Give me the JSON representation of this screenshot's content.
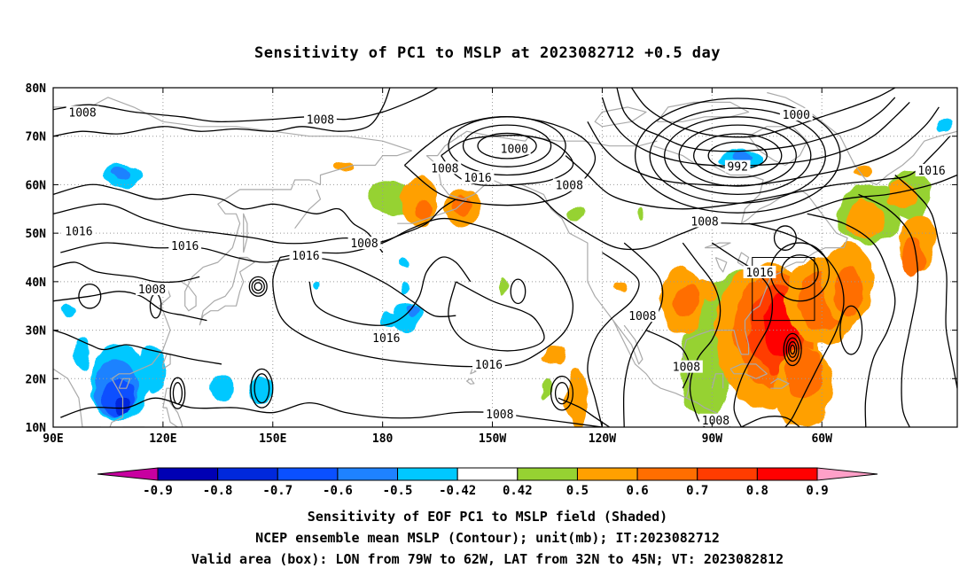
{
  "title": "Sensitivity of PC1 to MSLP at 2023082712 +0.5 day",
  "map": {
    "lat_labels": [
      "80N",
      "70N",
      "60N",
      "50N",
      "40N",
      "30N",
      "20N",
      "10N"
    ],
    "lon_labels": [
      "90E",
      "120E",
      "150E",
      "180",
      "150W",
      "120W",
      "90W",
      "60W"
    ],
    "lon_extent_deg": [
      90,
      337
    ],
    "lat_extent_deg": [
      10,
      80
    ],
    "grid_style": "dotted",
    "contour_color": "#000000",
    "coast_color": "#aaaaaa",
    "contour_labels": [
      {
        "text": "1008",
        "lon": 98,
        "lat": 75
      },
      {
        "text": "1008",
        "lon": 163,
        "lat": 73.5
      },
      {
        "text": "1000",
        "lon": 216,
        "lat": 67.5
      },
      {
        "text": "1008",
        "lon": 197,
        "lat": 63.5
      },
      {
        "text": "1016",
        "lon": 206,
        "lat": 61.5
      },
      {
        "text": "1008",
        "lon": 231,
        "lat": 60
      },
      {
        "text": "1000",
        "lon": 293,
        "lat": 74.5
      },
      {
        "text": "992",
        "lon": 277,
        "lat": 63.8
      },
      {
        "text": "1016",
        "lon": 330,
        "lat": 63
      },
      {
        "text": "1008",
        "lon": 268,
        "lat": 52.5
      },
      {
        "text": "1016",
        "lon": 97,
        "lat": 50.5
      },
      {
        "text": "1016",
        "lon": 126,
        "lat": 47.5
      },
      {
        "text": "1008",
        "lon": 175,
        "lat": 48
      },
      {
        "text": "1016",
        "lon": 159,
        "lat": 45.5
      },
      {
        "text": "1008",
        "lon": 117,
        "lat": 38.5
      },
      {
        "text": "1016",
        "lon": 283,
        "lat": 42
      },
      {
        "text": "1008",
        "lon": 251,
        "lat": 33
      },
      {
        "text": "1016",
        "lon": 181,
        "lat": 28.5
      },
      {
        "text": "1016",
        "lon": 209,
        "lat": 23
      },
      {
        "text": "1008",
        "lon": 263,
        "lat": 22.5
      },
      {
        "text": "1008",
        "lon": 212,
        "lat": 12.7
      },
      {
        "text": "1008",
        "lon": 271,
        "lat": 11.5
      }
    ],
    "valid_box": {
      "lon_min": 281,
      "lon_max": 298,
      "lat_min": 32,
      "lat_max": 45
    }
  },
  "colorbar": {
    "labels": [
      "-0.9",
      "-0.8",
      "-0.7",
      "-0.6",
      "-0.5",
      "-0.42",
      "0.42",
      "0.5",
      "0.6",
      "0.7",
      "0.8",
      "0.9"
    ],
    "colors": [
      "#0000b4",
      "#0028dc",
      "#0a50ff",
      "#1e82ff",
      "#00c8ff",
      "#ffffff",
      "#96d232",
      "#ffa000",
      "#ff6e00",
      "#ff3c00",
      "#ff0000"
    ],
    "below_color": "#c800a0",
    "above_color": "#ffa0c8"
  },
  "shading": {
    "positive": [
      {
        "lon": 183,
        "lat": 57,
        "r": [
          7,
          3.5
        ],
        "level": 0
      },
      {
        "lon": 190,
        "lat": 56.5,
        "r": [
          5,
          5
        ],
        "level": 1
      },
      {
        "lon": 191,
        "lat": 55,
        "r": [
          2.5,
          2
        ],
        "level": 2
      },
      {
        "lon": 202,
        "lat": 55,
        "r": [
          5,
          4
        ],
        "level": 1
      },
      {
        "lon": 202,
        "lat": 56,
        "r": [
          2.5,
          2
        ],
        "level": 2
      },
      {
        "lon": 169,
        "lat": 63.5,
        "r": [
          3,
          1
        ],
        "level": 1
      },
      {
        "lon": 233,
        "lat": 54,
        "r": [
          3,
          1.5
        ],
        "level": 0
      },
      {
        "lon": 250,
        "lat": 54,
        "r": [
          1,
          1
        ],
        "level": 0
      },
      {
        "lon": 213,
        "lat": 39,
        "r": [
          1,
          2
        ],
        "level": 0
      },
      {
        "lon": 245,
        "lat": 39,
        "r": [
          2,
          1.2
        ],
        "level": 1
      },
      {
        "lon": 227,
        "lat": 25,
        "r": [
          3,
          2
        ],
        "level": 1
      },
      {
        "lon": 225,
        "lat": 18,
        "r": [
          1.3,
          1.8
        ],
        "level": 0
      },
      {
        "lon": 233,
        "lat": 16,
        "r": [
          3,
          6
        ],
        "level": 1
      },
      {
        "lon": 268,
        "lat": 22,
        "r": [
          7,
          10
        ],
        "level": 0
      },
      {
        "lon": 262,
        "lat": 36,
        "r": [
          6,
          7
        ],
        "level": 1
      },
      {
        "lon": 263,
        "lat": 36,
        "r": [
          3,
          3
        ],
        "level": 2
      },
      {
        "lon": 278,
        "lat": 30,
        "r": [
          12,
          12
        ],
        "level": 0
      },
      {
        "lon": 285,
        "lat": 29,
        "r": [
          14,
          15
        ],
        "level": 1
      },
      {
        "lon": 287,
        "lat": 30,
        "r": [
          11,
          12
        ],
        "level": 2
      },
      {
        "lon": 288,
        "lat": 30,
        "r": [
          8,
          9
        ],
        "level": 3
      },
      {
        "lon": 289,
        "lat": 31,
        "r": [
          5,
          6
        ],
        "level": 4
      },
      {
        "lon": 300,
        "lat": 36,
        "r": [
          10,
          9
        ],
        "level": 1
      },
      {
        "lon": 300,
        "lat": 36,
        "r": [
          7,
          6
        ],
        "level": 2
      },
      {
        "lon": 295,
        "lat": 18,
        "r": [
          8,
          8
        ],
        "level": 1
      },
      {
        "lon": 295,
        "lat": 21,
        "r": [
          5,
          5
        ],
        "level": 2
      },
      {
        "lon": 307,
        "lat": 40,
        "r": [
          7,
          8
        ],
        "level": 1
      },
      {
        "lon": 307,
        "lat": 38,
        "r": [
          4,
          5
        ],
        "level": 2
      },
      {
        "lon": 313,
        "lat": 54,
        "r": [
          9,
          6
        ],
        "level": 0
      },
      {
        "lon": 312,
        "lat": 53,
        "r": [
          5,
          4
        ],
        "level": 1
      },
      {
        "lon": 324,
        "lat": 58,
        "r": [
          6,
          5
        ],
        "level": 0
      },
      {
        "lon": 322,
        "lat": 58,
        "r": [
          4,
          3
        ],
        "level": 1
      },
      {
        "lon": 326,
        "lat": 48,
        "r": [
          5,
          6
        ],
        "level": 1
      },
      {
        "lon": 325,
        "lat": 45,
        "r": [
          3,
          4
        ],
        "level": 2
      },
      {
        "lon": 311,
        "lat": 62.5,
        "r": [
          3,
          1
        ],
        "level": 1
      },
      {
        "lon": 269,
        "lat": 38,
        "r": [
          3,
          2
        ],
        "level": 1
      }
    ],
    "negative": [
      {
        "lon": 109,
        "lat": 62,
        "r": [
          5,
          2.5
        ],
        "level": 4
      },
      {
        "lon": 109,
        "lat": 62.5,
        "r": [
          2.5,
          1.2
        ],
        "level": 3
      },
      {
        "lon": 108,
        "lat": 19,
        "r": [
          8,
          8
        ],
        "level": 4
      },
      {
        "lon": 107,
        "lat": 18,
        "r": [
          6,
          6
        ],
        "level": 3
      },
      {
        "lon": 108,
        "lat": 16,
        "r": [
          4,
          4
        ],
        "level": 2
      },
      {
        "lon": 109,
        "lat": 14,
        "r": [
          2,
          2
        ],
        "level": 1
      },
      {
        "lon": 117,
        "lat": 22,
        "r": [
          4,
          5
        ],
        "level": 4
      },
      {
        "lon": 98,
        "lat": 25,
        "r": [
          2,
          3
        ],
        "level": 4
      },
      {
        "lon": 94,
        "lat": 34,
        "r": [
          2,
          1.5
        ],
        "level": 4
      },
      {
        "lon": 136,
        "lat": 18,
        "r": [
          3,
          3
        ],
        "level": 4
      },
      {
        "lon": 147,
        "lat": 18,
        "r": [
          3,
          3
        ],
        "level": 4
      },
      {
        "lon": 187,
        "lat": 33,
        "r": [
          4,
          3
        ],
        "level": 4
      },
      {
        "lon": 188,
        "lat": 34,
        "r": [
          2,
          1.5
        ],
        "level": 3
      },
      {
        "lon": 182,
        "lat": 32,
        "r": [
          2,
          1.5
        ],
        "level": 4
      },
      {
        "lon": 186,
        "lat": 39,
        "r": [
          1.2,
          1.2
        ],
        "level": 4
      },
      {
        "lon": 186,
        "lat": 44,
        "r": [
          1,
          1.2
        ],
        "level": 4
      },
      {
        "lon": 162,
        "lat": 39,
        "r": [
          1,
          1
        ],
        "level": 4
      },
      {
        "lon": 278,
        "lat": 65,
        "r": [
          6,
          2
        ],
        "level": 4
      },
      {
        "lon": 278,
        "lat": 65.5,
        "r": [
          3,
          1
        ],
        "level": 3
      },
      {
        "lon": 334,
        "lat": 72,
        "r": [
          2,
          1.5
        ],
        "level": 4
      }
    ]
  },
  "captions": [
    "Sensitivity of EOF PC1 to MSLP field (Shaded)",
    "NCEP ensemble mean MSLP (Contour); unit(mb); IT:2023082712",
    "Valid area (box): LON from 79W to 62W, LAT from 32N to 45N; VT: 2023082812"
  ]
}
